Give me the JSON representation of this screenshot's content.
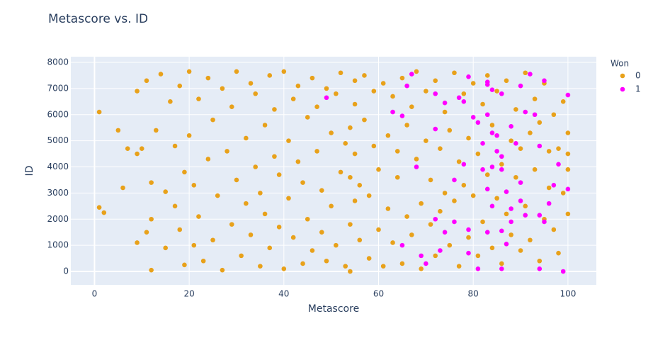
{
  "chart_data": {
    "type": "scatter",
    "title": "Metascore vs. ID",
    "x_label": "Metascore",
    "y_label": "ID",
    "legend_title": "Won",
    "legend_position": "right",
    "xlim": [
      -5,
      106
    ],
    "ylim": [
      -515,
      8217
    ],
    "xticks": [
      0,
      20,
      40,
      60,
      80,
      100
    ],
    "yticks": [
      0,
      1000,
      2000,
      3000,
      4000,
      5000,
      6000,
      7000,
      8000
    ],
    "grid": true,
    "series": [
      {
        "name": "0",
        "color": "#e8a11a",
        "x": [
          1,
          1,
          2,
          5,
          6,
          7,
          9,
          9,
          9,
          10,
          11,
          11,
          12,
          12,
          12,
          13,
          14,
          15,
          15,
          16,
          17,
          17,
          18,
          18,
          19,
          19,
          20,
          20,
          21,
          21,
          22,
          22,
          23,
          24,
          24,
          25,
          25,
          26,
          27,
          27,
          28,
          29,
          29,
          30,
          30,
          31,
          32,
          32,
          33,
          33,
          34,
          34,
          35,
          35,
          36,
          36,
          37,
          37,
          38,
          38,
          39,
          39,
          40,
          40,
          41,
          41,
          42,
          42,
          43,
          43,
          44,
          44,
          45,
          45,
          46,
          46,
          47,
          47,
          48,
          48,
          49,
          49,
          50,
          50,
          51,
          51,
          52,
          52,
          53,
          53,
          54,
          54,
          54,
          54,
          55,
          55,
          55,
          55,
          56,
          56,
          57,
          57,
          58,
          58,
          59,
          59,
          60,
          60,
          61,
          61,
          62,
          62,
          63,
          63,
          64,
          64,
          65,
          65,
          66,
          66,
          67,
          67,
          68,
          68,
          69,
          69,
          70,
          70,
          71,
          71,
          72,
          72,
          73,
          73,
          74,
          74,
          75,
          75,
          76,
          76,
          77,
          77,
          78,
          78,
          79,
          79,
          80,
          80,
          81,
          81,
          82,
          82,
          83,
          83,
          84,
          84,
          85,
          85,
          86,
          86,
          87,
          87,
          88,
          88,
          89,
          89,
          90,
          90,
          91,
          91,
          92,
          92,
          93,
          93,
          94,
          94,
          95,
          95,
          96,
          96,
          97,
          97,
          98,
          98,
          99,
          99,
          100,
          100,
          100,
          100
        ],
        "y": [
          2450,
          6100,
          2250,
          5400,
          3200,
          4700,
          4500,
          1100,
          6900,
          4700,
          7300,
          1500,
          2000,
          50,
          3400,
          5400,
          7550,
          3050,
          900,
          6500,
          2500,
          4800,
          1600,
          7100,
          3800,
          250,
          7650,
          5200,
          1000,
          3300,
          6600,
          2100,
          400,
          7400,
          4300,
          5800,
          1200,
          2900,
          7000,
          50,
          4600,
          6300,
          1800,
          3500,
          7650,
          600,
          5100,
          2600,
          7200,
          1400,
          4000,
          6800,
          200,
          3000,
          5600,
          2200,
          7500,
          900,
          4400,
          6200,
          1700,
          3700,
          7650,
          100,
          5000,
          2800,
          6600,
          1300,
          4200,
          7100,
          300,
          3400,
          5900,
          2000,
          7400,
          800,
          4600,
          6300,
          1500,
          3100,
          7000,
          400,
          5300,
          2500,
          6800,
          1000,
          3800,
          7600,
          200,
          4900,
          0,
          1800,
          3600,
          5500,
          7300,
          2700,
          4500,
          6400,
          1200,
          3300,
          5800,
          7500,
          500,
          2900,
          4800,
          6900,
          1600,
          3900,
          7200,
          200,
          5200,
          2400,
          6700,
          1100,
          3600,
          4600,
          7400,
          300,
          2100,
          5600,
          6300,
          1400,
          4300,
          7650,
          2600,
          100,
          5000,
          6900,
          1800,
          3500,
          7300,
          600,
          4700,
          2300,
          6100,
          3000,
          1000,
          5400,
          7600,
          2700,
          4200,
          200,
          6800,
          3300,
          1300,
          5100,
          7200,
          2900,
          4500,
          600,
          6400,
          1900,
          3700,
          7500,
          5600,
          900,
          2800,
          6900,
          4100,
          300,
          7300,
          2200,
          5000,
          1400,
          6200,
          3600,
          800,
          4700,
          7600,
          2500,
          5300,
          1200,
          6600,
          3900,
          400,
          5700,
          7200,
          2000,
          4600,
          3200,
          6000,
          1600,
          4700,
          700,
          6500,
          3000,
          5300,
          2200,
          3900,
          4500
        ]
      },
      {
        "name": "1",
        "color": "#ff00ff",
        "x": [
          49,
          66,
          67,
          63,
          65,
          72,
          72,
          74,
          77,
          79,
          78,
          80,
          81,
          83,
          83,
          84,
          83,
          84,
          86,
          85,
          88,
          90,
          91,
          92,
          93,
          95,
          94,
          97,
          98,
          100,
          100,
          96,
          94,
          91,
          88,
          86,
          83,
          79,
          76,
          74,
          72,
          69,
          70,
          65,
          68,
          73,
          79,
          81,
          86,
          94,
          99,
          84,
          87,
          82,
          78,
          84,
          85,
          86,
          89,
          90,
          76,
          88,
          86,
          83,
          90,
          95,
          87,
          82
        ],
        "y": [
          6650,
          7100,
          7550,
          6100,
          5950,
          6800,
          5450,
          6450,
          6650,
          7450,
          6500,
          5900,
          5700,
          7250,
          7150,
          6950,
          6000,
          5300,
          6800,
          5200,
          5550,
          7100,
          6100,
          7550,
          6000,
          7300,
          4800,
          3300,
          4100,
          3150,
          6750,
          2600,
          2150,
          2150,
          1900,
          1550,
          1500,
          1600,
          1900,
          1500,
          2000,
          600,
          300,
          1000,
          4000,
          800,
          700,
          100,
          100,
          100,
          0,
          2500,
          3050,
          3900,
          4100,
          4000,
          4600,
          4400,
          4900,
          3400,
          3500,
          2400,
          3900,
          3150,
          2700,
          1900,
          1050,
          4900
        ]
      }
    ]
  }
}
